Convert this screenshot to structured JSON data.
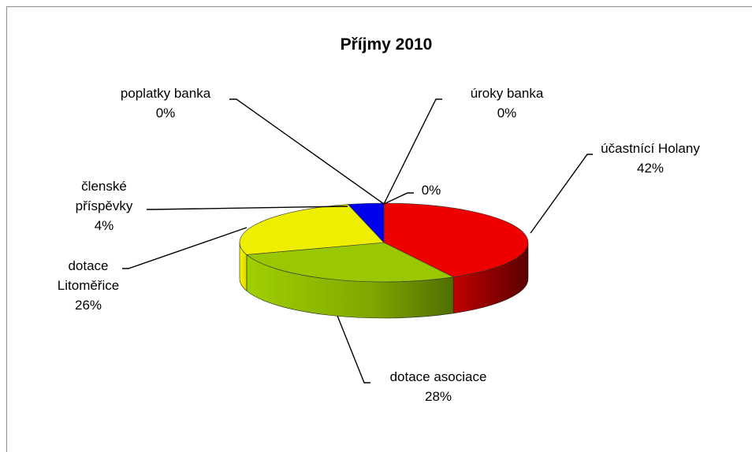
{
  "chart_data": {
    "type": "pie",
    "title": "Příjmy 2010",
    "slices": [
      {
        "label": "účastnící Holany",
        "value": 42,
        "percent_label": "42%",
        "color": "#ee0000"
      },
      {
        "label": "dotace asociace",
        "value": 28,
        "percent_label": "28%",
        "color": "#99c700"
      },
      {
        "label": "dotace Litoměřice",
        "value": 26,
        "percent_label": "26%",
        "color": "#eeee00"
      },
      {
        "label": "členské příspěvky",
        "value": 4,
        "percent_label": "4%",
        "color": "#0000ee"
      },
      {
        "label": "poplatky banka",
        "value": 0,
        "percent_label": "0%",
        "color": "#888888"
      },
      {
        "label": "úroky banka",
        "value": 0,
        "percent_label": "0%",
        "color": "#888888"
      },
      {
        "label": "",
        "value": 0,
        "percent_label": "0%",
        "color": "#888888"
      }
    ],
    "label_lines": {
      "ucastnici": [
        "účastnící Holany",
        "42%"
      ],
      "asociace": [
        "dotace asociace",
        "28%"
      ],
      "litomerice": [
        "dotace",
        "Litoměřice",
        "26%"
      ],
      "clenske": [
        "členské",
        "příspěvky",
        "4%"
      ],
      "poplatky": [
        "poplatky banka",
        "0%"
      ],
      "uroky": [
        "úroky banka",
        "0%"
      ],
      "unnamed": [
        "0%"
      ]
    }
  }
}
